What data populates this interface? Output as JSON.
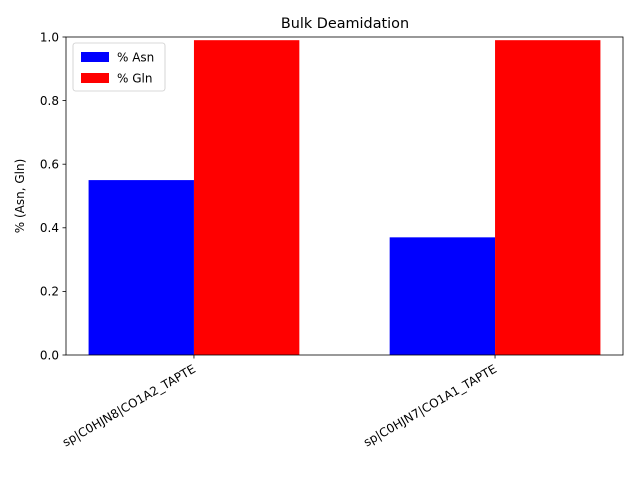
{
  "chart_data": {
    "type": "bar",
    "title": "Bulk Deamidation",
    "xlabel": "",
    "ylabel": "% (Asn, Gln)",
    "categories": [
      "sp|C0HJN8|CO1A2_TAPTE",
      "sp|C0HJN7|CO1A1_TAPTE"
    ],
    "series": [
      {
        "name": "% Asn",
        "values": [
          0.55,
          0.37
        ],
        "color": "#0000ff"
      },
      {
        "name": "% Gln",
        "values": [
          0.99,
          0.99
        ],
        "color": "#ff0000"
      }
    ],
    "ylim": [
      0.0,
      1.0
    ],
    "yticks": [
      "0.0",
      "0.2",
      "0.4",
      "0.6",
      "0.8",
      "1.0"
    ],
    "grid": false,
    "legend_position": "top-left"
  }
}
